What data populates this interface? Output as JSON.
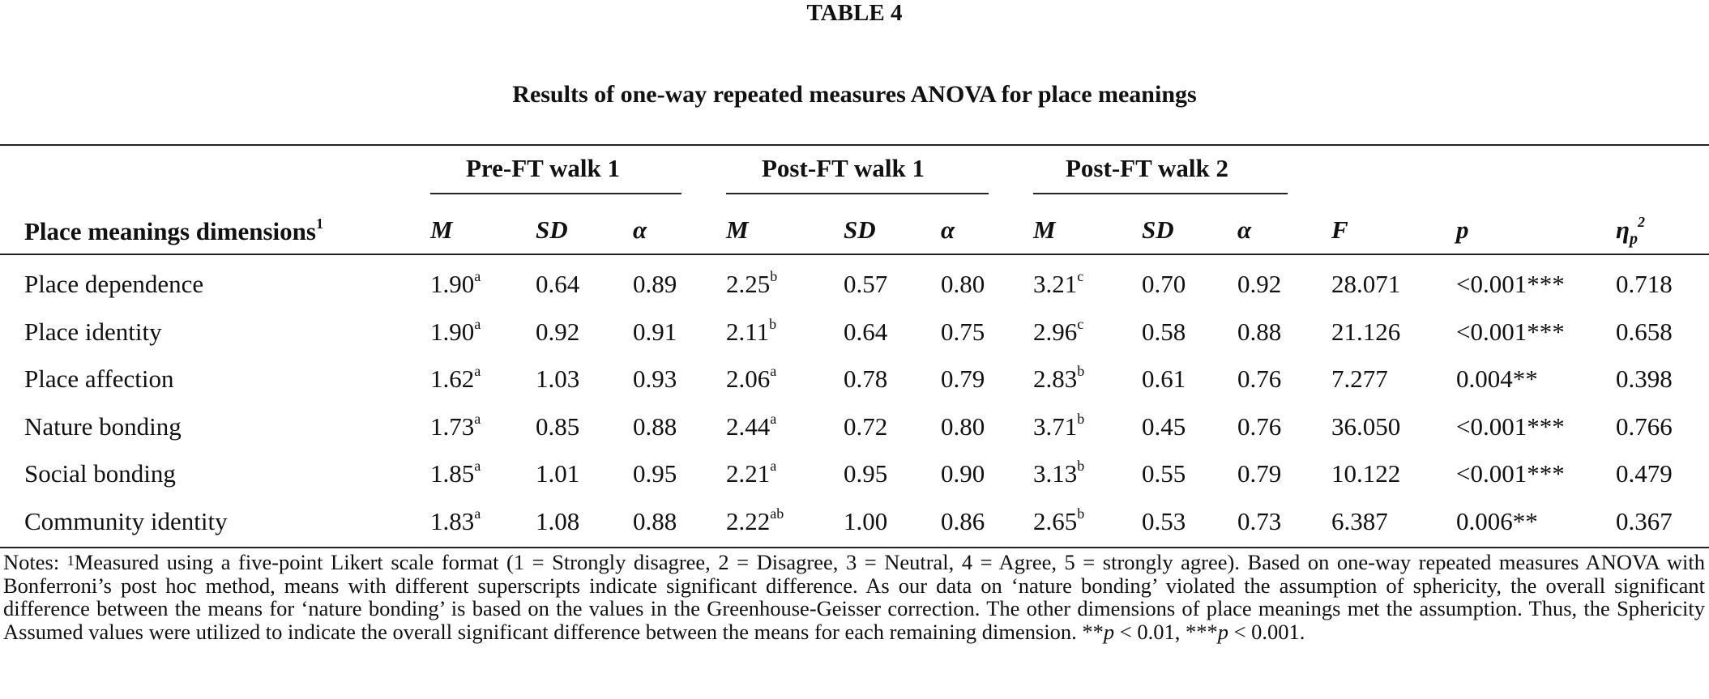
{
  "table_label": "TABLE 4",
  "caption": "Results of one-way repeated measures ANOVA for place meanings",
  "groups": [
    "Pre-FT walk 1",
    "Post-FT walk 1",
    "Post-FT walk 2"
  ],
  "headers": {
    "dimension": "Place meanings dimensions",
    "dimension_note": "1",
    "m": "M",
    "sd": "SD",
    "alpha": "α",
    "f": "F",
    "p": "p",
    "eta": "η",
    "eta_sub": "p",
    "eta_sup": "2"
  },
  "rows": [
    {
      "label": "Place dependence",
      "cells": [
        [
          "1.90",
          "a"
        ],
        [
          "0.64",
          ""
        ],
        [
          "0.89",
          ""
        ],
        [
          "2.25",
          "b"
        ],
        [
          "0.57",
          ""
        ],
        [
          "0.80",
          ""
        ],
        [
          "3.21",
          "c"
        ],
        [
          "0.70",
          ""
        ],
        [
          "0.92",
          ""
        ]
      ],
      "F": "28.071",
      "p": "<0.001***",
      "eta": "0.718"
    },
    {
      "label": "Place identity",
      "cells": [
        [
          "1.90",
          "a"
        ],
        [
          "0.92",
          ""
        ],
        [
          "0.91",
          ""
        ],
        [
          "2.11",
          "b"
        ],
        [
          "0.64",
          ""
        ],
        [
          "0.75",
          ""
        ],
        [
          "2.96",
          "c"
        ],
        [
          "0.58",
          ""
        ],
        [
          "0.88",
          ""
        ]
      ],
      "F": "21.126",
      "p": "<0.001***",
      "eta": "0.658"
    },
    {
      "label": "Place affection",
      "cells": [
        [
          "1.62",
          "a"
        ],
        [
          "1.03",
          ""
        ],
        [
          "0.93",
          ""
        ],
        [
          "2.06",
          "a"
        ],
        [
          "0.78",
          ""
        ],
        [
          "0.79",
          ""
        ],
        [
          "2.83",
          "b"
        ],
        [
          "0.61",
          ""
        ],
        [
          "0.76",
          ""
        ]
      ],
      "F": "7.277",
      "p": "0.004**",
      "eta": "0.398"
    },
    {
      "label": "Nature bonding",
      "cells": [
        [
          "1.73",
          "a"
        ],
        [
          "0.85",
          ""
        ],
        [
          "0.88",
          ""
        ],
        [
          "2.44",
          "a"
        ],
        [
          "0.72",
          ""
        ],
        [
          "0.80",
          ""
        ],
        [
          "3.71",
          "b"
        ],
        [
          "0.45",
          ""
        ],
        [
          "0.76",
          ""
        ]
      ],
      "F": "36.050",
      "p": "<0.001***",
      "eta": "0.766"
    },
    {
      "label": "Social bonding",
      "cells": [
        [
          "1.85",
          "a"
        ],
        [
          "1.01",
          ""
        ],
        [
          "0.95",
          ""
        ],
        [
          "2.21",
          "a"
        ],
        [
          "0.95",
          ""
        ],
        [
          "0.90",
          ""
        ],
        [
          "3.13",
          "b"
        ],
        [
          "0.55",
          ""
        ],
        [
          "0.79",
          ""
        ]
      ],
      "F": "10.122",
      "p": "<0.001***",
      "eta": "0.479"
    },
    {
      "label": "Community identity",
      "cells": [
        [
          "1.83",
          "a"
        ],
        [
          "1.08",
          ""
        ],
        [
          "0.88",
          ""
        ],
        [
          "2.22",
          "ab"
        ],
        [
          "1.00",
          ""
        ],
        [
          "0.86",
          ""
        ],
        [
          "2.65",
          "b"
        ],
        [
          "0.53",
          ""
        ],
        [
          "0.73",
          ""
        ]
      ],
      "F": "6.387",
      "p": "0.006**",
      "eta": "0.367"
    }
  ],
  "notes": {
    "prefix": "Notes: ",
    "sup": "1",
    "text": "Measured using a five-point Likert scale format (1 = Strongly disagree, 2 = Disagree, 3 = Neutral, 4 = Agree, 5 = strongly agree). Based on one-way repeated measures ANOVA with Bonferroni’s post hoc method, means with different superscripts indicate significant difference. As our data on ‘nature bonding’ violated the assumption of sphericity, the overall significant difference between the means for ‘nature bonding’ is based on the values in the Greenhouse-Geisser correction. The other dimensions of place meanings met the assumption. Thus, the Sphericity Assumed values were utilized to indicate the overall significant difference between the means for each remaining dimension.",
    "sig1_stars": "**",
    "sig1_p": "p",
    "sig1_rest": " < 0.01, ",
    "sig2_stars": "***",
    "sig2_p": "p",
    "sig2_rest": " < 0.001."
  }
}
